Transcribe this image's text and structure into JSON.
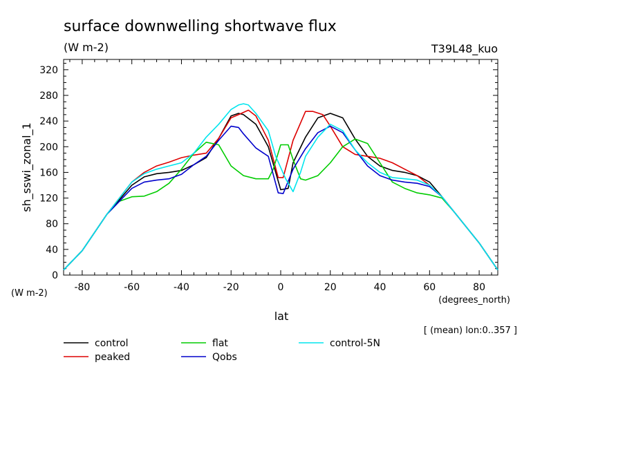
{
  "chart_data": {
    "type": "line",
    "title": "surface downwelling shortwave flux",
    "subtitle": "(W m-2)",
    "run_label": "T39L48_kuo",
    "xlabel": "lat",
    "xunit": "(degrees_north)",
    "ylabel": "sh_sswi_zonal_1",
    "yunit": "(W m-2)",
    "footnote": "[ (mean) lon:0..357 ]",
    "xlim": [
      -87.5,
      87.5
    ],
    "ylim": [
      0,
      336
    ],
    "xticks": [
      -80,
      -60,
      -40,
      -20,
      0,
      20,
      40,
      60,
      80
    ],
    "yticks": [
      0,
      40,
      80,
      120,
      160,
      200,
      240,
      280,
      320
    ],
    "grid": false,
    "legend_position": "below",
    "series": [
      {
        "name": "control",
        "color": "#000000",
        "x": [
          -87.5,
          -80,
          -70,
          -60,
          -55,
          -50,
          -45,
          -40,
          -35,
          -30,
          -25,
          -20,
          -17,
          -15,
          -10,
          -5,
          0,
          3,
          5,
          10,
          15,
          20,
          25,
          30,
          35,
          40,
          45,
          50,
          55,
          60,
          65,
          70,
          80,
          87.5
        ],
        "values": [
          8,
          38,
          95,
          140,
          153,
          158,
          160,
          163,
          172,
          183,
          213,
          248,
          252,
          250,
          235,
          200,
          133,
          135,
          175,
          215,
          245,
          252,
          245,
          212,
          185,
          170,
          163,
          160,
          155,
          145,
          122,
          98,
          50,
          8
        ]
      },
      {
        "name": "peaked",
        "color": "#dd0000",
        "x": [
          -87.5,
          -80,
          -70,
          -60,
          -55,
          -50,
          -45,
          -40,
          -35,
          -30,
          -25,
          -20,
          -17,
          -13,
          -10,
          -5,
          -1,
          1,
          5,
          10,
          13,
          17,
          20,
          25,
          30,
          35,
          40,
          45,
          50,
          55,
          60,
          65,
          70,
          80,
          87.5
        ],
        "values": [
          8,
          38,
          95,
          145,
          160,
          170,
          176,
          183,
          187,
          190,
          213,
          245,
          250,
          257,
          248,
          210,
          152,
          152,
          210,
          255,
          255,
          250,
          232,
          200,
          188,
          185,
          182,
          175,
          165,
          155,
          140,
          122,
          98,
          50,
          8
        ]
      },
      {
        "name": "flat",
        "color": "#00cc00",
        "x": [
          -87.5,
          -80,
          -70,
          -65,
          -60,
          -55,
          -50,
          -45,
          -40,
          -35,
          -30,
          -25,
          -20,
          -15,
          -10,
          -5,
          -3,
          0,
          3,
          5,
          8,
          10,
          15,
          20,
          25,
          30,
          35,
          40,
          45,
          50,
          55,
          60,
          65,
          70,
          80,
          87.5
        ],
        "values": [
          8,
          38,
          95,
          115,
          122,
          123,
          130,
          143,
          165,
          190,
          207,
          203,
          170,
          155,
          150,
          150,
          165,
          203,
          203,
          180,
          150,
          148,
          155,
          175,
          200,
          212,
          205,
          175,
          145,
          135,
          128,
          125,
          120,
          98,
          50,
          8
        ]
      },
      {
        "name": "Qobs",
        "color": "#0000cc",
        "x": [
          -87.5,
          -80,
          -70,
          -60,
          -55,
          -50,
          -45,
          -40,
          -35,
          -30,
          -25,
          -20,
          -17,
          -15,
          -10,
          -5,
          -1,
          1,
          5,
          10,
          15,
          20,
          25,
          30,
          35,
          40,
          45,
          50,
          55,
          60,
          65,
          70,
          80,
          87.5
        ],
        "values": [
          8,
          38,
          95,
          135,
          145,
          148,
          150,
          157,
          172,
          185,
          210,
          232,
          230,
          220,
          198,
          185,
          128,
          127,
          165,
          197,
          222,
          232,
          222,
          195,
          170,
          155,
          148,
          145,
          143,
          138,
          122,
          98,
          50,
          8
        ]
      },
      {
        "name": "control-5N",
        "color": "#00e5ee",
        "x": [
          -87.5,
          -80,
          -70,
          -60,
          -55,
          -50,
          -45,
          -40,
          -35,
          -30,
          -25,
          -20,
          -17,
          -15,
          -13,
          -10,
          -5,
          -2,
          2,
          5,
          8,
          10,
          15,
          20,
          25,
          30,
          35,
          40,
          45,
          50,
          55,
          60,
          65,
          70,
          80,
          87.5
        ],
        "values": [
          8,
          38,
          95,
          145,
          158,
          165,
          170,
          175,
          190,
          215,
          235,
          258,
          265,
          267,
          265,
          252,
          225,
          185,
          150,
          130,
          160,
          185,
          215,
          235,
          225,
          195,
          175,
          160,
          152,
          150,
          148,
          140,
          122,
          98,
          50,
          8
        ]
      }
    ]
  }
}
